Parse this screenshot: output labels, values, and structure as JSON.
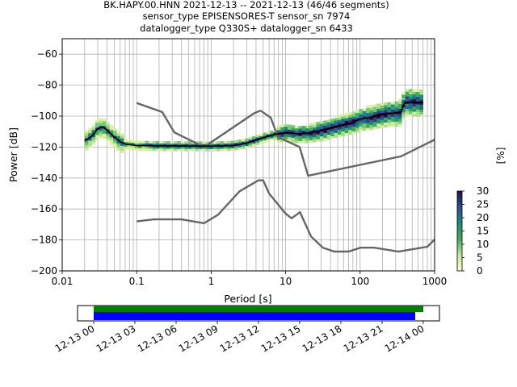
{
  "title": {
    "line1": "BK.HAPY.00.HNN   2021-12-13 -- 2021-12-13  (46/46 segments)",
    "line2": "sensor_type EPISENSORES-T sensor_sn 7974",
    "line3": "datalogger_type Q330S+ datalogger_sn 6433"
  },
  "colors": {
    "model_line": "#666666",
    "mean_line": "#000000",
    "grid": "#b0b0b0",
    "coverage_top": "#008000",
    "coverage_bottom": "#0000ff"
  },
  "colorbar": {
    "label": "[%]",
    "ticks": [
      "0",
      "5",
      "10",
      "15",
      "20",
      "25",
      "30"
    ],
    "range": [
      0,
      30
    ]
  },
  "chart_data": {
    "type": "heatmap",
    "xlabel": "Period [s]",
    "ylabel": "Power [dB]",
    "xscale": "log",
    "xlim": [
      0.01,
      1000
    ],
    "ylim": [
      -200,
      -50
    ],
    "x_ticks": [
      "0.01",
      "0.1",
      "1",
      "10",
      "100",
      "1000"
    ],
    "y_ticks": [
      "−60",
      "−80",
      "−100",
      "−120",
      "−140",
      "−160",
      "−180",
      "−200"
    ],
    "y_tick_values": [
      -60,
      -80,
      -100,
      -120,
      -140,
      -160,
      -180,
      -200
    ],
    "grid": true,
    "series": [
      {
        "x": [
          0.1,
          0.22,
          0.32,
          0.8,
          3.8,
          4.6,
          6.3,
          7.9,
          15.4,
          20,
          354.8,
          10000
        ],
        "y": [
          -91.5,
          -97.4,
          -110.5,
          -120,
          -98,
          -96.5,
          -101,
          -113.5,
          -120,
          -138.5,
          -126,
          -91.3
        ]
      },
      {
        "x": [
          0.1,
          0.17,
          0.4,
          0.8,
          1.24,
          2.4,
          4.3,
          5,
          6,
          10,
          12,
          15.6,
          21.9,
          31.6,
          45,
          70,
          101,
          154,
          328,
          800,
          3800
        ],
        "y": [
          -168,
          -166.7,
          -166.7,
          -169.2,
          -163.7,
          -148.6,
          -141.5,
          -141.5,
          -150,
          -163,
          -166,
          -162.1,
          -177.7,
          -185,
          -187.5,
          -187.5,
          -185,
          -185,
          -187.5,
          -184.4,
          -151.5
        ]
      },
      {
        "x": [
          0.02,
          0.025,
          0.03,
          0.035,
          0.04,
          0.05,
          0.06,
          0.07,
          0.1,
          0.2,
          0.5,
          1,
          2,
          3,
          5,
          7,
          10,
          15,
          20,
          30,
          50,
          80,
          100,
          150,
          200,
          350,
          400,
          450,
          700
        ],
        "y": [
          -116,
          -113,
          -108,
          -107,
          -109,
          -113.5,
          -116.5,
          -118,
          -119,
          -119.2,
          -119.3,
          -119.5,
          -119,
          -117.5,
          -114,
          -112,
          -110.5,
          -111.5,
          -111,
          -109.5,
          -106.5,
          -104,
          -102,
          -100.5,
          -99,
          -97.5,
          -91,
          -91,
          -91
        ]
      }
    ],
    "coverage": {
      "x_ticks": [
        "12-13 00",
        "12-13 03",
        "12-13 06",
        "12-13 09",
        "12-13 12",
        "12-13 15",
        "12-13 18",
        "12-13 21",
        "12-14 00"
      ],
      "start": "2021-12-13 00:00",
      "end": "2021-12-14 00:00"
    }
  }
}
